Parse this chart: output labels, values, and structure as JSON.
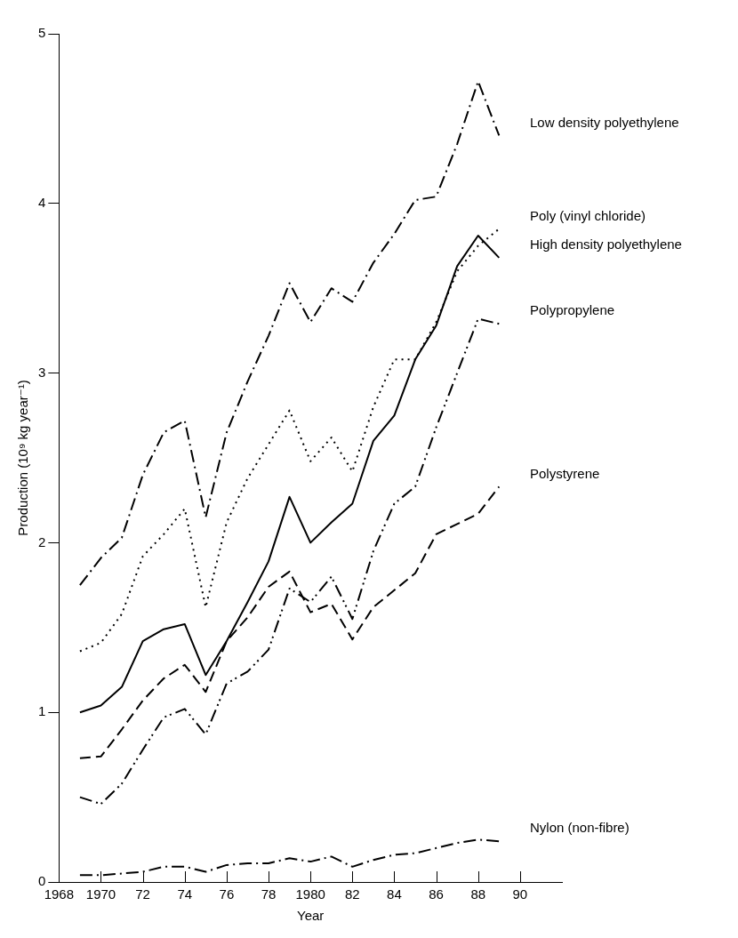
{
  "chart_data": {
    "type": "line",
    "xlabel": "Year",
    "ylabel": "Production (10⁹ kg year⁻¹)",
    "x": [
      1969,
      1970,
      1971,
      1972,
      1973,
      1974,
      1975,
      1976,
      1977,
      1978,
      1979,
      1980,
      1981,
      1982,
      1983,
      1984,
      1985,
      1986,
      1987,
      1988,
      1989
    ],
    "xlim": [
      1968,
      1992
    ],
    "xticks": [
      1968,
      1970,
      {
        "value": 1972,
        "label": "72"
      },
      {
        "value": 1974,
        "label": "74"
      },
      {
        "value": 1976,
        "label": "76"
      },
      {
        "value": 1978,
        "label": "78"
      },
      1980,
      {
        "value": 1982,
        "label": "82"
      },
      {
        "value": 1984,
        "label": "84"
      },
      {
        "value": 1986,
        "label": "86"
      },
      {
        "value": 1988,
        "label": "88"
      },
      {
        "value": 1990,
        "label": "90"
      }
    ],
    "ylim": [
      0,
      5
    ],
    "yticks": [
      0,
      1,
      2,
      3,
      4,
      5
    ],
    "grid": false,
    "legend": false,
    "marker": "none",
    "series": [
      {
        "name": "Low density polyethylene",
        "color": "#000000",
        "line_style": "dashdot",
        "values": [
          1.75,
          1.91,
          2.03,
          2.4,
          2.65,
          2.72,
          2.15,
          2.65,
          2.95,
          3.22,
          3.53,
          3.3,
          3.5,
          3.42,
          3.65,
          3.82,
          4.02,
          4.04,
          4.35,
          4.72,
          4.4
        ]
      },
      {
        "name": "Poly (vinyl chloride)",
        "color": "#000000",
        "line_style": "dotted",
        "values": [
          1.36,
          1.41,
          1.58,
          1.92,
          2.05,
          2.2,
          1.62,
          2.12,
          2.38,
          2.58,
          2.78,
          2.48,
          2.62,
          2.42,
          2.8,
          3.08,
          3.08,
          3.3,
          3.6,
          3.75,
          3.85
        ]
      },
      {
        "name": "High density polyethylene",
        "color": "#000000",
        "line_style": "solid",
        "values": [
          1.0,
          1.04,
          1.15,
          1.42,
          1.49,
          1.52,
          1.22,
          1.42,
          1.65,
          1.89,
          2.27,
          2.0,
          2.12,
          2.23,
          2.6,
          2.75,
          3.08,
          3.28,
          3.63,
          3.81,
          3.68
        ]
      },
      {
        "name": "Polypropylene",
        "color": "#000000",
        "line_style": "dashdotdot",
        "values": [
          0.5,
          0.46,
          0.58,
          0.78,
          0.97,
          1.02,
          0.87,
          1.17,
          1.24,
          1.37,
          1.73,
          1.65,
          1.8,
          1.55,
          1.95,
          2.23,
          2.33,
          2.68,
          3.0,
          3.32,
          3.29
        ]
      },
      {
        "name": "Polystyrene",
        "color": "#000000",
        "line_style": "dashed",
        "values": [
          0.73,
          0.74,
          0.9,
          1.07,
          1.2,
          1.28,
          1.12,
          1.42,
          1.56,
          1.74,
          1.83,
          1.59,
          1.64,
          1.43,
          1.62,
          1.72,
          1.82,
          2.05,
          2.11,
          2.17,
          2.33
        ]
      },
      {
        "name": "Nylon (non-fibre)",
        "color": "#000000",
        "line_style": "dashdot",
        "values": [
          0.04,
          0.04,
          0.05,
          0.06,
          0.09,
          0.09,
          0.06,
          0.1,
          0.11,
          0.11,
          0.14,
          0.12,
          0.15,
          0.09,
          0.13,
          0.16,
          0.17,
          0.2,
          0.23,
          0.25,
          0.24
        ]
      }
    ]
  }
}
